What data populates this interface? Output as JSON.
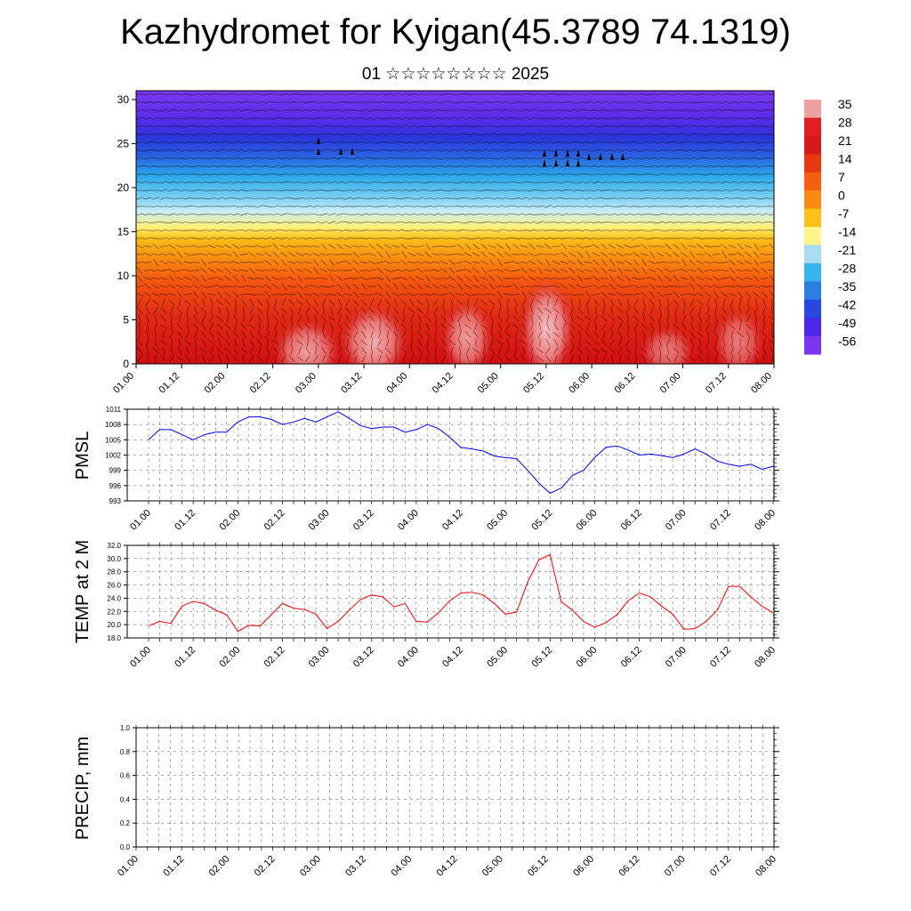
{
  "header": {
    "title": "Kazhydromet for Kyigan(45.3789 74.1319)",
    "subtitle": "01 ☆☆☆☆☆☆☆☆ 2025"
  },
  "time_ticks": [
    "01.00",
    "01.12",
    "02.00",
    "02.12",
    "03.00",
    "03.12",
    "04.00",
    "04.12",
    "05.00",
    "05.12",
    "06.00",
    "06.12",
    "07.00",
    "07.12",
    "08.00"
  ],
  "chart_data": [
    {
      "type": "heatmap",
      "title": "",
      "xlabel": "",
      "ylabel": "",
      "x_ticks": [
        "01.00",
        "01.12",
        "02.00",
        "02.12",
        "03.00",
        "03.12",
        "04.00",
        "04.12",
        "05.00",
        "05.12",
        "06.00",
        "06.12",
        "07.00",
        "07.12",
        "08.00"
      ],
      "y_ticks": [
        0,
        5,
        10,
        15,
        20,
        25,
        30
      ],
      "ylim": [
        0,
        31
      ],
      "colorbar_labels": [
        "35",
        "28",
        "21",
        "14",
        "7",
        "0",
        "-7",
        "-14",
        "-21",
        "-28",
        "-35",
        "-42",
        "-49",
        "-56"
      ],
      "colorbar_colors": [
        "#f0a0a0",
        "#e02020",
        "#d71818",
        "#e83a12",
        "#f26010",
        "#f98c10",
        "#fcc11a",
        "#fff48a",
        "#a8dcf0",
        "#38b4ec",
        "#2c7fe0",
        "#2848e0",
        "#4a28e8",
        "#7a36ee"
      ],
      "wind_barbs": true,
      "grid": false
    },
    {
      "type": "line",
      "ylabel": "PMSL",
      "x_ticks": [
        "01.00",
        "01.12",
        "02.00",
        "02.12",
        "03.00",
        "03.12",
        "04.00",
        "04.12",
        "05.00",
        "05.12",
        "06.00",
        "06.12",
        "07.00",
        "07.12",
        "08.00"
      ],
      "y_ticks": [
        "1011",
        "1008",
        "1005",
        "1002",
        "999",
        "996",
        "993"
      ],
      "ylim": [
        993,
        1011
      ],
      "grid": true,
      "series": [
        {
          "color": "#0000ff",
          "values": [
            1005,
            1007,
            1007,
            1006,
            1005,
            1006,
            1006.5,
            1006.5,
            1008.5,
            1009.5,
            1009.5,
            1009,
            1008,
            1008.5,
            1009.2,
            1008.5,
            1009.5,
            1010.5,
            1009.2,
            1007.8,
            1007.2,
            1007.5,
            1007.5,
            1006.5,
            1007,
            1008,
            1007.2,
            1005.5,
            1003.5,
            1003.2,
            1002.8,
            1001.8,
            1001.5,
            1001.3,
            999,
            996.5,
            994.5,
            995.5,
            998,
            999,
            1001.5,
            1003.5,
            1003.8,
            1003,
            1002,
            1002.2,
            1001.9,
            1001.5,
            1002.2,
            1003.2,
            1002.2,
            1000.8,
            1000.2,
            999.8,
            1000.2,
            999.2,
            999.8
          ]
        }
      ]
    },
    {
      "type": "line",
      "ylabel": "TEMP at 2 M",
      "x_ticks": [
        "01.00",
        "01.12",
        "02.00",
        "02.12",
        "03.00",
        "03.12",
        "04.00",
        "04.12",
        "05.00",
        "05.12",
        "06.00",
        "06.12",
        "07.00",
        "07.12",
        "08.00"
      ],
      "y_ticks": [
        "32.0",
        "30.0",
        "28.0",
        "26.0",
        "24.0",
        "22.0",
        "20.0",
        "18.0"
      ],
      "ylim": [
        18,
        32
      ],
      "grid": true,
      "series": [
        {
          "color": "#ff0000",
          "values": [
            19.8,
            20.5,
            20.2,
            22.8,
            23.5,
            23.2,
            22.2,
            21.5,
            19.0,
            19.9,
            19.8,
            21.5,
            23.2,
            22.5,
            22.3,
            21.6,
            19.4,
            20.5,
            22.2,
            23.8,
            24.5,
            24.2,
            22.7,
            23.2,
            20.5,
            20.4,
            21.8,
            23.6,
            24.8,
            24.9,
            24.5,
            23.2,
            21.6,
            21.9,
            26.5,
            29.8,
            30.6,
            23.5,
            22.2,
            20.5,
            19.6,
            20.3,
            21.5,
            23.6,
            24.8,
            24.2,
            22.8,
            21.6,
            19.3,
            19.4,
            20.5,
            22.2,
            25.8,
            25.8,
            24.2,
            22.8,
            21.8
          ]
        }
      ]
    },
    {
      "type": "line",
      "ylabel": "PRECIP, mm",
      "x_ticks": [
        "01.00",
        "01.12",
        "02.00",
        "02.12",
        "03.00",
        "03.12",
        "04.00",
        "04.12",
        "05.00",
        "05.12",
        "06.00",
        "06.12",
        "07.00",
        "07.12",
        "08.00"
      ],
      "y_ticks": [
        "1.0",
        "0.8",
        "0.6",
        "0.4",
        "0.2",
        "0.0"
      ],
      "ylim": [
        0,
        1
      ],
      "grid": true,
      "series": []
    }
  ]
}
